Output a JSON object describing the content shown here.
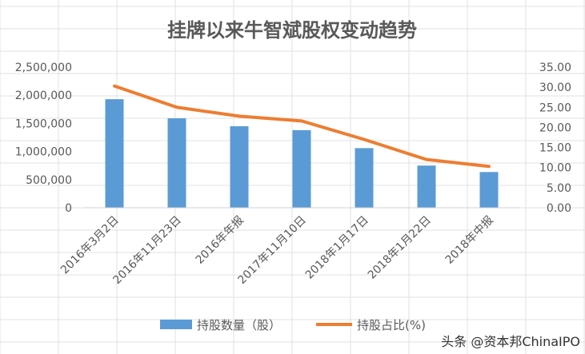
{
  "chart_data": {
    "type": "bar+line",
    "title": "挂牌以来牛智斌股权变动趋势",
    "categories": [
      "2016年3月2日",
      "2016年11月23日",
      "2016年年报",
      "2017年11月10日",
      "2018年1月17日",
      "2018年1月22日",
      "2018年中报"
    ],
    "series": [
      {
        "name": "持股数量（股）",
        "type": "bar",
        "axis": "left",
        "color": "#5b9bd5",
        "values": [
          1930000,
          1590000,
          1450000,
          1380000,
          1060000,
          750000,
          635000
        ]
      },
      {
        "name": "持股占比(%)",
        "type": "line",
        "axis": "right",
        "color": "#ed7d31",
        "values": [
          30.3,
          25.0,
          22.8,
          21.6,
          17.0,
          12.0,
          10.3
        ]
      }
    ],
    "y_left": {
      "min": 0,
      "max": 2500000,
      "tick_labels": [
        "0",
        "500,000",
        "1,000,000",
        "1,500,000",
        "2,000,000",
        "2,500,000"
      ]
    },
    "y_right": {
      "min": 0,
      "max": 35,
      "tick_labels": [
        "0.00",
        "5.00",
        "10.00",
        "15.00",
        "20.00",
        "25.00",
        "30.00",
        "35.00"
      ]
    },
    "legend_position": "bottom",
    "grid": true
  },
  "watermark": "头条 @资本邦ChinaIPO"
}
